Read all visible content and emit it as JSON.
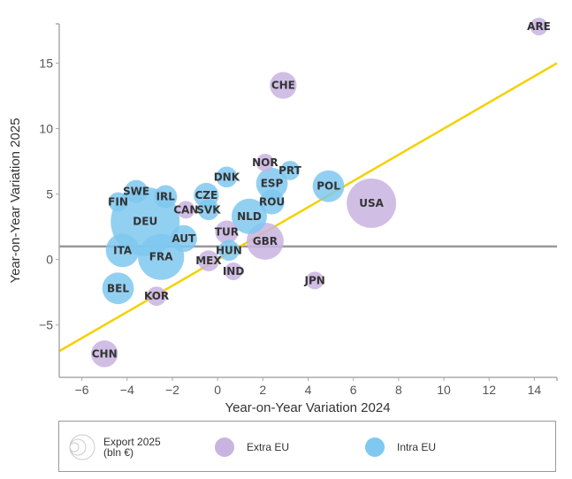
{
  "chart_data": {
    "type": "scatter",
    "subtype": "bubble",
    "title": "",
    "xlabel": "Year-on-Year Variation 2024",
    "ylabel": "Year-on-Year Variation 2025",
    "xlim": [
      -7,
      15
    ],
    "ylim": [
      -9,
      18
    ],
    "xticks": [
      -6,
      -4,
      -2,
      0,
      2,
      4,
      6,
      8,
      10,
      12,
      14
    ],
    "yticks": [
      -5,
      0,
      5,
      10,
      15
    ],
    "xtick_labels": [
      "−6",
      "−4",
      "−2",
      "0",
      "2",
      "4",
      "6",
      "8",
      "10",
      "12",
      "14"
    ],
    "ytick_labels": [
      "−5",
      "0",
      "5",
      "10",
      "15"
    ],
    "grid": false,
    "reference_lines": [
      {
        "name": "horizontal-reference",
        "type": "horizontal",
        "y": 1.0,
        "color": "#999999"
      },
      {
        "name": "diagonal-reference",
        "type": "diagonal",
        "from": [
          -7,
          -7
        ],
        "to": [
          15,
          15
        ],
        "color": "#f5d000"
      }
    ],
    "size_legend_label": "Export 2025\n(bln €)",
    "series": [
      {
        "name": "Extra EU",
        "color": "#c9b3e0",
        "points": [
          {
            "label": "ARE",
            "x": 14.2,
            "y": 17.8,
            "size": 10
          },
          {
            "label": "CHE",
            "x": 2.9,
            "y": 13.3,
            "size": 23
          },
          {
            "label": "USA",
            "x": 6.8,
            "y": 4.3,
            "size": 78
          },
          {
            "label": "NOR",
            "x": 2.1,
            "y": 7.4,
            "size": 10
          },
          {
            "label": "CAN",
            "x": -1.4,
            "y": 3.8,
            "size": 10
          },
          {
            "label": "TUR",
            "x": 0.4,
            "y": 2.1,
            "size": 17
          },
          {
            "label": "GBR",
            "x": 2.1,
            "y": 1.4,
            "size": 44
          },
          {
            "label": "MEX",
            "x": -0.4,
            "y": -0.1,
            "size": 14
          },
          {
            "label": "IND",
            "x": 0.7,
            "y": -0.9,
            "size": 10
          },
          {
            "label": "JPN",
            "x": 4.3,
            "y": -1.6,
            "size": 10
          },
          {
            "label": "KOR",
            "x": -2.7,
            "y": -2.8,
            "size": 12
          },
          {
            "label": "CHN",
            "x": -5.0,
            "y": -7.2,
            "size": 23
          }
        ]
      },
      {
        "name": "Intra EU",
        "color": "#7fc8f0",
        "points": [
          {
            "label": "DEU",
            "x": -3.2,
            "y": 2.9,
            "size": 152
          },
          {
            "label": "FRA",
            "x": -2.5,
            "y": 0.2,
            "size": 68
          },
          {
            "label": "ITA",
            "x": -4.2,
            "y": 0.7,
            "size": 36
          },
          {
            "label": "ESP",
            "x": 2.4,
            "y": 5.8,
            "size": 32
          },
          {
            "label": "POL",
            "x": 4.9,
            "y": 5.6,
            "size": 32
          },
          {
            "label": "NLD",
            "x": 1.4,
            "y": 3.3,
            "size": 40
          },
          {
            "label": "BEL",
            "x": -4.4,
            "y": -2.2,
            "size": 32
          },
          {
            "label": "AUT",
            "x": -1.5,
            "y": 1.6,
            "size": 23
          },
          {
            "label": "ROU",
            "x": 2.4,
            "y": 4.4,
            "size": 20
          },
          {
            "label": "CZE",
            "x": -0.5,
            "y": 4.9,
            "size": 20
          },
          {
            "label": "SVK",
            "x": -0.4,
            "y": 3.8,
            "size": 14
          },
          {
            "label": "HUN",
            "x": 0.5,
            "y": 0.7,
            "size": 14
          },
          {
            "label": "DNK",
            "x": 0.4,
            "y": 6.3,
            "size": 14
          },
          {
            "label": "IRL",
            "x": -2.3,
            "y": 4.8,
            "size": 17
          },
          {
            "label": "SWE",
            "x": -3.6,
            "y": 5.2,
            "size": 17
          },
          {
            "label": "PRT",
            "x": 3.2,
            "y": 6.8,
            "size": 12
          },
          {
            "label": "FIN",
            "x": -4.4,
            "y": 4.4,
            "size": 12
          }
        ]
      }
    ]
  },
  "legend": {
    "size_label_line1": "Export 2025",
    "size_label_line2": "(bln €)",
    "extra_eu_label": "Extra EU",
    "intra_eu_label": "Intra EU",
    "extra_eu_color": "#c9b3e0",
    "intra_eu_color": "#7fc8f0"
  }
}
